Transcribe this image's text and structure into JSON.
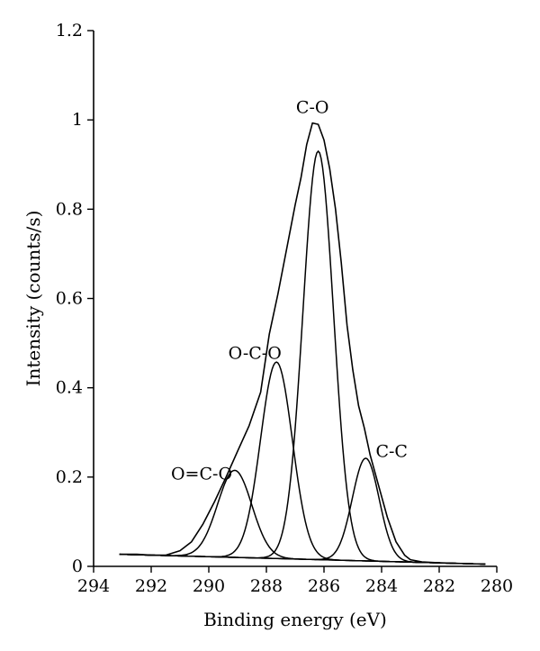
{
  "chart_data": {
    "type": "line",
    "title": "",
    "xlabel": "Binding energy (eV)",
    "ylabel": "Intensity (counts/s)",
    "xlim": [
      294,
      280
    ],
    "ylim": [
      0,
      1.2
    ],
    "x_reversed": true,
    "x_ticks": [
      294,
      292,
      290,
      288,
      286,
      284,
      282,
      280
    ],
    "x_tick_labels": [
      "294",
      "292",
      "290",
      "288",
      "286",
      "284",
      "282",
      "280"
    ],
    "y_ticks": [
      0,
      0.2,
      0.4,
      0.6,
      0.8,
      1.0,
      1.2
    ],
    "y_tick_labels": [
      "0",
      "0.2",
      "0.4",
      "0.6",
      "0.8",
      "1",
      "1.2"
    ],
    "grid": false,
    "line_color": "#000000",
    "baseline": {
      "start": [
        293.1,
        0.027
      ],
      "end": [
        280.4,
        0.005
      ]
    },
    "envelope": {
      "x": [
        293.1,
        292.5,
        292.0,
        291.5,
        291.0,
        290.6,
        290.2,
        289.8,
        289.4,
        289.0,
        288.6,
        288.2,
        287.9,
        287.6,
        287.3,
        287.0,
        286.8,
        286.6,
        286.4,
        286.2,
        286.0,
        285.8,
        285.6,
        285.4,
        285.2,
        285.0,
        284.8,
        284.6,
        284.4,
        284.1,
        283.8,
        283.5,
        283.2,
        283.0,
        282.6,
        282.0,
        281.5,
        281.0,
        280.4
      ],
      "y": [
        0.027,
        0.027,
        0.025,
        0.025,
        0.035,
        0.055,
        0.095,
        0.145,
        0.2,
        0.258,
        0.315,
        0.39,
        0.52,
        0.61,
        0.71,
        0.81,
        0.87,
        0.945,
        0.993,
        0.99,
        0.955,
        0.89,
        0.8,
        0.68,
        0.54,
        0.44,
        0.36,
        0.31,
        0.25,
        0.18,
        0.11,
        0.055,
        0.025,
        0.015,
        0.01,
        0.008,
        0.007,
        0.006,
        0.005
      ]
    },
    "series": [
      {
        "label": "O=C-O",
        "center": 289.1,
        "amplitude": 0.195,
        "fwhm": 1.4
      },
      {
        "label": "O-C-O",
        "center": 287.65,
        "amplitude": 0.44,
        "fwhm": 1.3
      },
      {
        "label": "C-O",
        "center": 286.2,
        "amplitude": 0.915,
        "fwhm": 1.25
      },
      {
        "label": "C-C",
        "center": 284.55,
        "amplitude": 0.23,
        "fwhm": 1.1
      }
    ],
    "annotations": [
      {
        "text": "C-O",
        "x": 286.4,
        "y": 1.015
      },
      {
        "text": "O-C-O",
        "x": 288.4,
        "y": 0.465
      },
      {
        "text": "O=C-O",
        "x": 290.25,
        "y": 0.195
      },
      {
        "text": "C-C",
        "x": 283.65,
        "y": 0.245
      }
    ]
  }
}
